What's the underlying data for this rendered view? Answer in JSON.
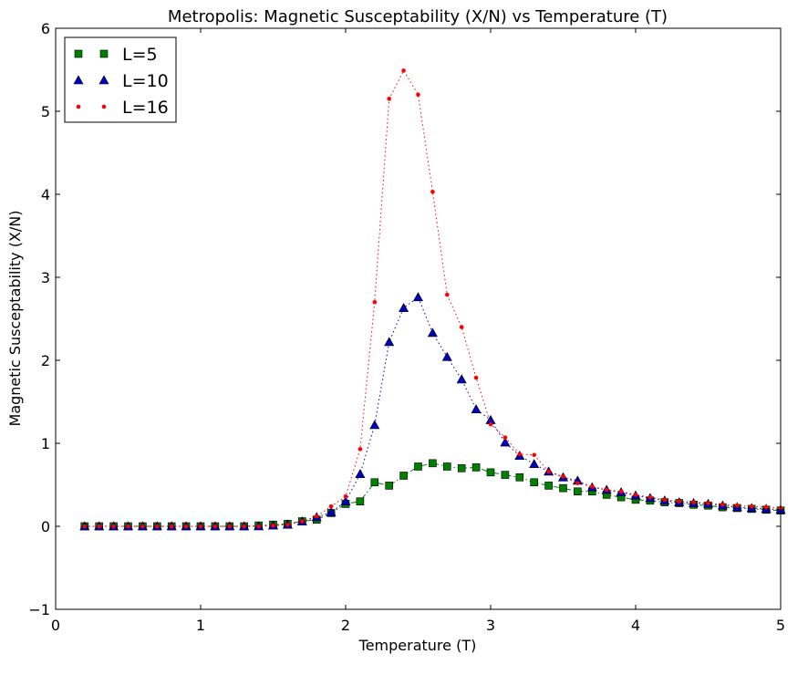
{
  "chart_data": {
    "type": "scatter",
    "title": "Metropolis: Magnetic Susceptability (X/N) vs Temperature (T)",
    "xlabel": "Temperature (T)",
    "ylabel": "Magnetic Susceptability (X/N)",
    "xlim": [
      0,
      5
    ],
    "ylim": [
      -1,
      6
    ],
    "xticks": [
      0,
      1,
      2,
      3,
      4,
      5
    ],
    "yticks": [
      -1,
      0,
      1,
      2,
      3,
      4,
      5,
      6
    ],
    "xtick_labels": [
      "0",
      "1",
      "2",
      "3",
      "4",
      "5"
    ],
    "ytick_labels": [
      "−1",
      "0",
      "1",
      "2",
      "3",
      "4",
      "5",
      "6"
    ],
    "grid": false,
    "legend_position": "top-left",
    "x": [
      0.2,
      0.3,
      0.4,
      0.5,
      0.6,
      0.7,
      0.8,
      0.9,
      1.0,
      1.1,
      1.2,
      1.3,
      1.4,
      1.5,
      1.6,
      1.7,
      1.8,
      1.9,
      2.0,
      2.1,
      2.2,
      2.3,
      2.4,
      2.5,
      2.6,
      2.7,
      2.8,
      2.9,
      3.0,
      3.1,
      3.2,
      3.3,
      3.4,
      3.5,
      3.6,
      3.7,
      3.8,
      3.9,
      4.0,
      4.1,
      4.2,
      4.3,
      4.4,
      4.5,
      4.6,
      4.7,
      4.8,
      4.9,
      5.0
    ],
    "series": [
      {
        "name": "L=5",
        "marker": "square",
        "color": "#007f00",
        "line_style": "dashdot",
        "values": [
          0,
          0,
          0,
          0,
          0,
          0,
          0,
          0,
          0,
          0,
          0,
          0,
          0.01,
          0.02,
          0.03,
          0.06,
          0.08,
          0.16,
          0.27,
          0.3,
          0.53,
          0.49,
          0.61,
          0.72,
          0.76,
          0.72,
          0.7,
          0.71,
          0.65,
          0.62,
          0.59,
          0.53,
          0.49,
          0.46,
          0.42,
          0.42,
          0.38,
          0.35,
          0.32,
          0.31,
          0.29,
          0.28,
          0.26,
          0.25,
          0.23,
          0.22,
          0.21,
          0.2,
          0.19
        ]
      },
      {
        "name": "L=10",
        "marker": "triangle",
        "color": "#0000bf",
        "line_style": "dotted",
        "values": [
          0,
          0,
          0,
          0,
          0,
          0,
          0,
          0,
          0,
          0,
          0,
          0,
          0,
          0.01,
          0.02,
          0.06,
          0.11,
          0.17,
          0.3,
          0.63,
          1.22,
          2.22,
          2.63,
          2.76,
          2.33,
          2.04,
          1.77,
          1.41,
          1.28,
          1.01,
          0.85,
          0.75,
          0.66,
          0.59,
          0.55,
          0.47,
          0.44,
          0.41,
          0.37,
          0.34,
          0.31,
          0.29,
          0.28,
          0.27,
          0.25,
          0.23,
          0.22,
          0.21,
          0.2
        ]
      },
      {
        "name": "L=16",
        "marker": "dot",
        "color": "#ff0000",
        "line_style": "dotted",
        "values": [
          0,
          0,
          0,
          0,
          0,
          0,
          0,
          0,
          0,
          0,
          0,
          0,
          0,
          0.01,
          0.02,
          0.06,
          0.12,
          0.24,
          0.36,
          0.93,
          2.7,
          5.15,
          5.49,
          5.2,
          4.03,
          2.79,
          2.4,
          1.79,
          1.23,
          1.07,
          0.87,
          0.86,
          0.66,
          0.6,
          0.52,
          0.48,
          0.44,
          0.42,
          0.38,
          0.35,
          0.32,
          0.3,
          0.29,
          0.28,
          0.26,
          0.25,
          0.24,
          0.23,
          0.22
        ]
      }
    ]
  }
}
